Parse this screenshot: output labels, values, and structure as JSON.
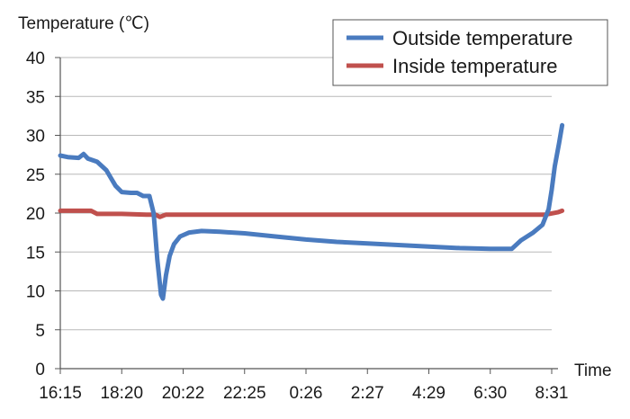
{
  "chart_data": {
    "type": "line",
    "title": "",
    "ylabel": "Temperature (℃)",
    "xlabel": "Time",
    "ylim": [
      0,
      40
    ],
    "yticks": [
      0,
      5,
      10,
      15,
      20,
      25,
      30,
      35,
      40
    ],
    "categories": [
      "16:15",
      "18:20",
      "20:22",
      "22:25",
      "0:26",
      "2:27",
      "4:29",
      "6:30",
      "8:31"
    ],
    "grid": "horizontal",
    "legend_position": "top-right",
    "series": [
      {
        "name": "Outside temperature",
        "color": "#4a7bbf",
        "points": [
          [
            0,
            27.4
          ],
          [
            0.12,
            27.2
          ],
          [
            0.3,
            27.1
          ],
          [
            0.38,
            27.6
          ],
          [
            0.45,
            27.0
          ],
          [
            0.6,
            26.6
          ],
          [
            0.75,
            25.5
          ],
          [
            0.9,
            23.5
          ],
          [
            1.0,
            22.7
          ],
          [
            1.15,
            22.6
          ],
          [
            1.25,
            22.6
          ],
          [
            1.35,
            22.2
          ],
          [
            1.45,
            22.2
          ],
          [
            1.52,
            20.0
          ],
          [
            1.58,
            14.0
          ],
          [
            1.64,
            9.5
          ],
          [
            1.67,
            9.0
          ],
          [
            1.72,
            12.0
          ],
          [
            1.78,
            14.5
          ],
          [
            1.85,
            16.0
          ],
          [
            1.95,
            17.0
          ],
          [
            2.1,
            17.5
          ],
          [
            2.3,
            17.7
          ],
          [
            2.6,
            17.6
          ],
          [
            3.0,
            17.4
          ],
          [
            3.5,
            17.0
          ],
          [
            4.0,
            16.6
          ],
          [
            4.5,
            16.3
          ],
          [
            5.0,
            16.1
          ],
          [
            5.5,
            15.9
          ],
          [
            6.0,
            15.7
          ],
          [
            6.5,
            15.5
          ],
          [
            7.0,
            15.4
          ],
          [
            7.35,
            15.4
          ],
          [
            7.5,
            16.5
          ],
          [
            7.7,
            17.5
          ],
          [
            7.85,
            18.5
          ],
          [
            7.95,
            20.5
          ],
          [
            8.0,
            23.0
          ],
          [
            8.05,
            26.0
          ],
          [
            8.12,
            29.0
          ],
          [
            8.17,
            31.3
          ]
        ]
      },
      {
        "name": "Inside temperature",
        "color": "#c0504d",
        "points": [
          [
            0,
            20.3
          ],
          [
            0.3,
            20.3
          ],
          [
            0.5,
            20.3
          ],
          [
            0.6,
            19.9
          ],
          [
            1.0,
            19.9
          ],
          [
            1.4,
            19.8
          ],
          [
            1.55,
            19.8
          ],
          [
            1.62,
            19.5
          ],
          [
            1.72,
            19.8
          ],
          [
            2.5,
            19.8
          ],
          [
            4.0,
            19.8
          ],
          [
            6.0,
            19.8
          ],
          [
            7.9,
            19.8
          ],
          [
            8.1,
            20.1
          ],
          [
            8.17,
            20.3
          ]
        ]
      }
    ]
  }
}
